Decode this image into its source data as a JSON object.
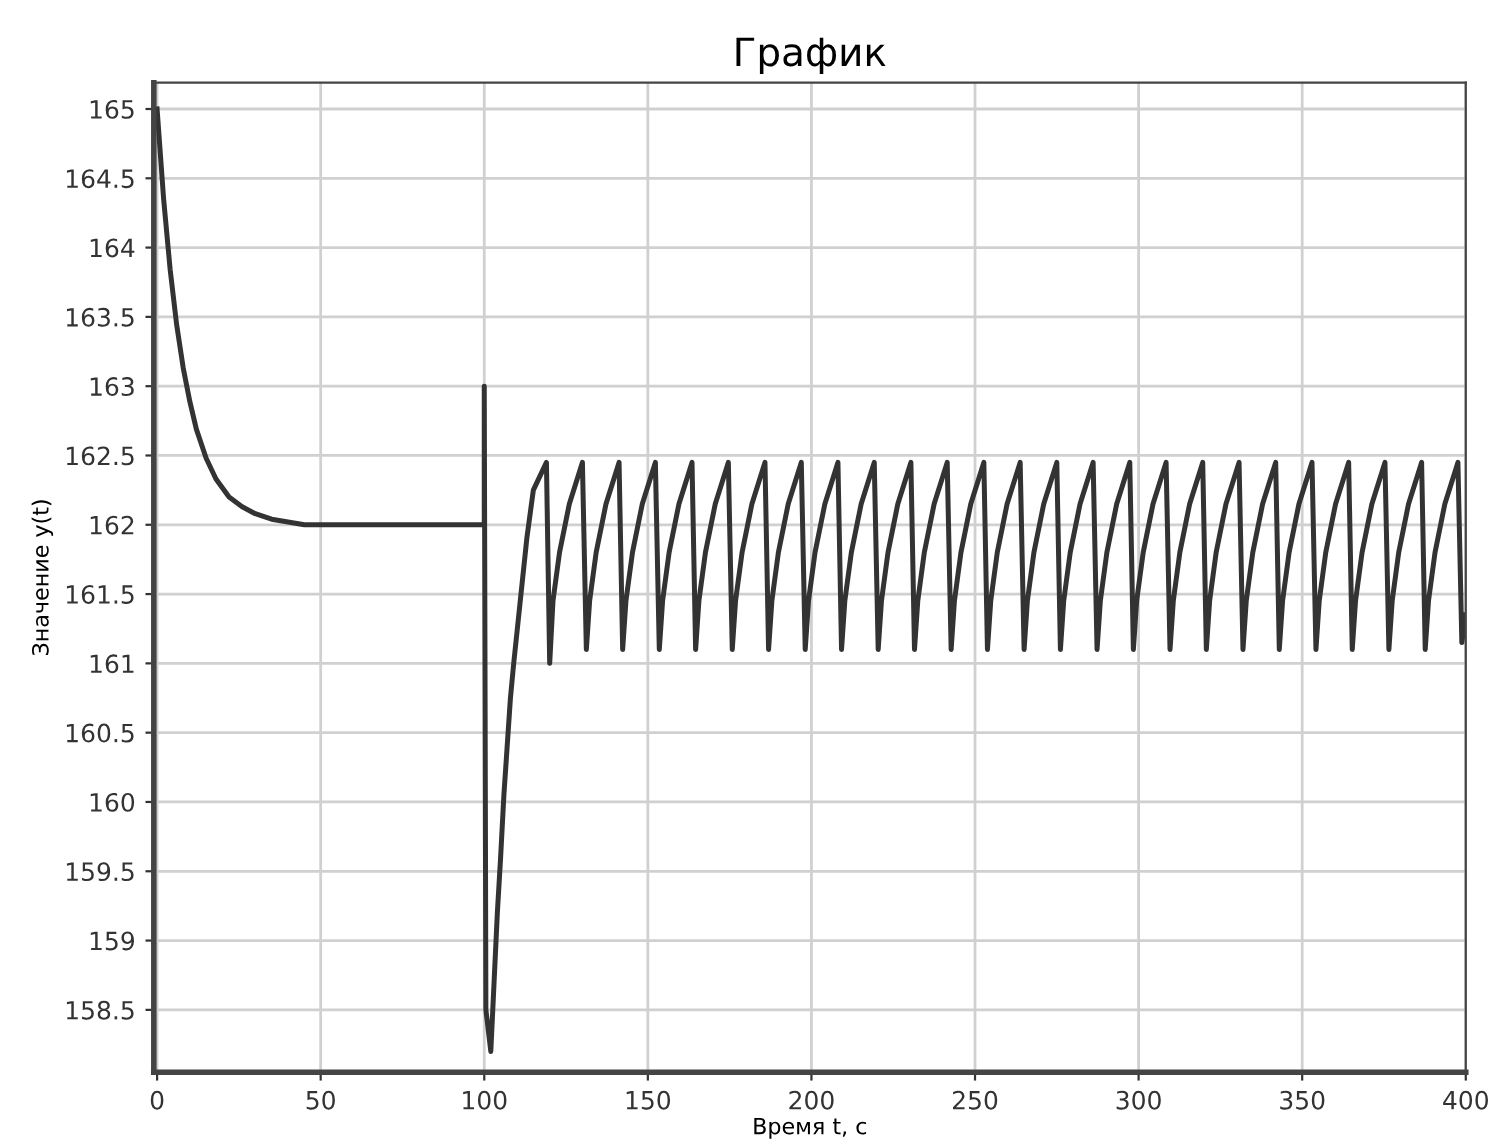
{
  "chart_data": {
    "type": "line",
    "title": "График",
    "xlabel": "Время t, с",
    "ylabel": "Значение y(t)",
    "xlim": [
      -1,
      400
    ],
    "ylim": [
      158.05,
      165.19
    ],
    "xticks": [
      0,
      50,
      100,
      150,
      200,
      250,
      300,
      350,
      400
    ],
    "yticks": [
      158.5,
      159,
      159.5,
      160,
      160.5,
      161,
      161.5,
      162,
      162.5,
      163,
      163.5,
      164,
      164.5,
      165
    ],
    "grid": true,
    "legend": false,
    "series": [
      {
        "color": "#333333",
        "line_style": "solid",
        "marker": "none",
        "x": [
          0,
          2,
          4,
          6,
          8,
          10,
          12,
          15,
          18,
          22,
          26,
          30,
          35,
          40,
          45,
          100,
          100,
          100.5,
          102,
          103,
          104,
          105,
          106,
          107,
          108,
          109,
          111,
          113,
          115,
          119,
          120,
          121,
          123,
          126,
          130,
          131.2,
          132.2,
          134.2,
          137.2,
          141.2,
          142.3,
          143.3,
          145.3,
          148.3,
          152.3,
          153.5,
          154.5,
          156.5,
          159.5,
          163.5,
          164.6,
          165.6,
          167.6,
          170.6,
          174.6,
          175.8,
          176.8,
          178.8,
          181.8,
          185.8,
          186.9,
          187.9,
          189.9,
          192.9,
          196.9,
          198.1,
          199.1,
          201.1,
          204.1,
          208.1,
          209.2,
          210.2,
          212.2,
          215.2,
          219.2,
          220.4,
          221.4,
          223.4,
          226.4,
          230.4,
          231.5,
          232.5,
          234.5,
          237.5,
          241.5,
          242.7,
          243.7,
          245.7,
          248.7,
          252.7,
          253.8,
          254.8,
          256.8,
          259.8,
          263.8,
          265,
          266,
          268,
          271,
          275,
          276.1,
          277.1,
          279.1,
          282.1,
          286.1,
          287.3,
          288.3,
          290.3,
          293.3,
          297.3,
          298.4,
          299.4,
          301.4,
          304.4,
          308.4,
          309.6,
          310.6,
          312.6,
          315.6,
          319.6,
          320.7,
          321.7,
          323.7,
          326.7,
          330.7,
          331.9,
          332.9,
          334.9,
          337.9,
          341.9,
          343,
          344,
          346,
          349,
          353,
          354.2,
          355.2,
          357.2,
          360.2,
          364.2,
          365.3,
          366.3,
          368.3,
          371.3,
          375.3,
          376.5,
          377.5,
          379.5,
          382.5,
          386.5,
          387.6,
          388.6,
          390.6,
          393.6,
          397.6,
          398.8,
          400
        ],
        "values": [
          165,
          164.35,
          163.84,
          163.44,
          163.13,
          162.89,
          162.69,
          162.48,
          162.33,
          162.2,
          162.13,
          162.08,
          162.04,
          162.02,
          162.0,
          162.0,
          163,
          158.5,
          158.2,
          158.7,
          159.2,
          159.6,
          160.05,
          160.4,
          160.75,
          161.0,
          161.45,
          161.9,
          162.25,
          162.45,
          161.0,
          161.45,
          161.8,
          162.15,
          162.45,
          161.1,
          161.45,
          161.8,
          162.15,
          162.45,
          161.1,
          161.45,
          161.8,
          162.15,
          162.45,
          161.1,
          161.45,
          161.8,
          162.15,
          162.45,
          161.1,
          161.45,
          161.8,
          162.15,
          162.45,
          161.1,
          161.45,
          161.8,
          162.15,
          162.45,
          161.1,
          161.45,
          161.8,
          162.15,
          162.45,
          161.1,
          161.45,
          161.8,
          162.15,
          162.45,
          161.1,
          161.45,
          161.8,
          162.15,
          162.45,
          161.1,
          161.45,
          161.8,
          162.15,
          162.45,
          161.1,
          161.45,
          161.8,
          162.15,
          162.45,
          161.1,
          161.45,
          161.8,
          162.15,
          162.45,
          161.1,
          161.45,
          161.8,
          162.15,
          162.45,
          161.1,
          161.45,
          161.8,
          162.15,
          162.45,
          161.1,
          161.45,
          161.8,
          162.15,
          162.45,
          161.1,
          161.45,
          161.8,
          162.15,
          162.45,
          161.1,
          161.45,
          161.8,
          162.15,
          162.45,
          161.1,
          161.45,
          161.8,
          162.15,
          162.45,
          161.1,
          161.45,
          161.8,
          162.15,
          162.45,
          161.1,
          161.45,
          161.8,
          162.15,
          162.45,
          161.1,
          161.45,
          161.8,
          162.15,
          162.45,
          161.1,
          161.45,
          161.8,
          162.15,
          162.45,
          161.1,
          161.45,
          161.8,
          162.15,
          162.45,
          161.1,
          161.45,
          161.8,
          162.15,
          162.45,
          161.1,
          161.45,
          161.8,
          162.15,
          162.45,
          161.15,
          161.35
        ]
      }
    ]
  }
}
